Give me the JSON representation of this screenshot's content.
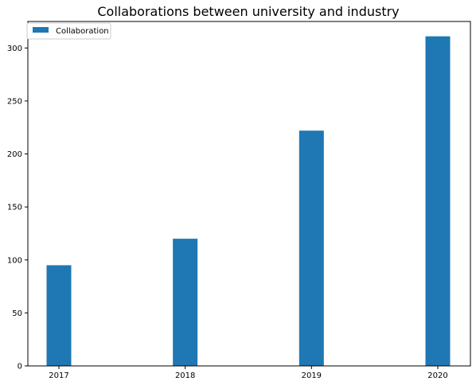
{
  "chart_data": {
    "type": "bar",
    "title": "Collaborations between university and industry",
    "xlabel": "",
    "ylabel": "",
    "categories": [
      "2017",
      "2018",
      "2019",
      "2020"
    ],
    "series": [
      {
        "name": "Collaboration",
        "values": [
          95,
          120,
          222,
          311
        ],
        "color": "#1f77b4"
      }
    ],
    "ylim": [
      0,
      325
    ],
    "yticks": [
      0,
      50,
      100,
      150,
      200,
      250,
      300
    ],
    "grid": false,
    "legend_position": "upper-left"
  }
}
